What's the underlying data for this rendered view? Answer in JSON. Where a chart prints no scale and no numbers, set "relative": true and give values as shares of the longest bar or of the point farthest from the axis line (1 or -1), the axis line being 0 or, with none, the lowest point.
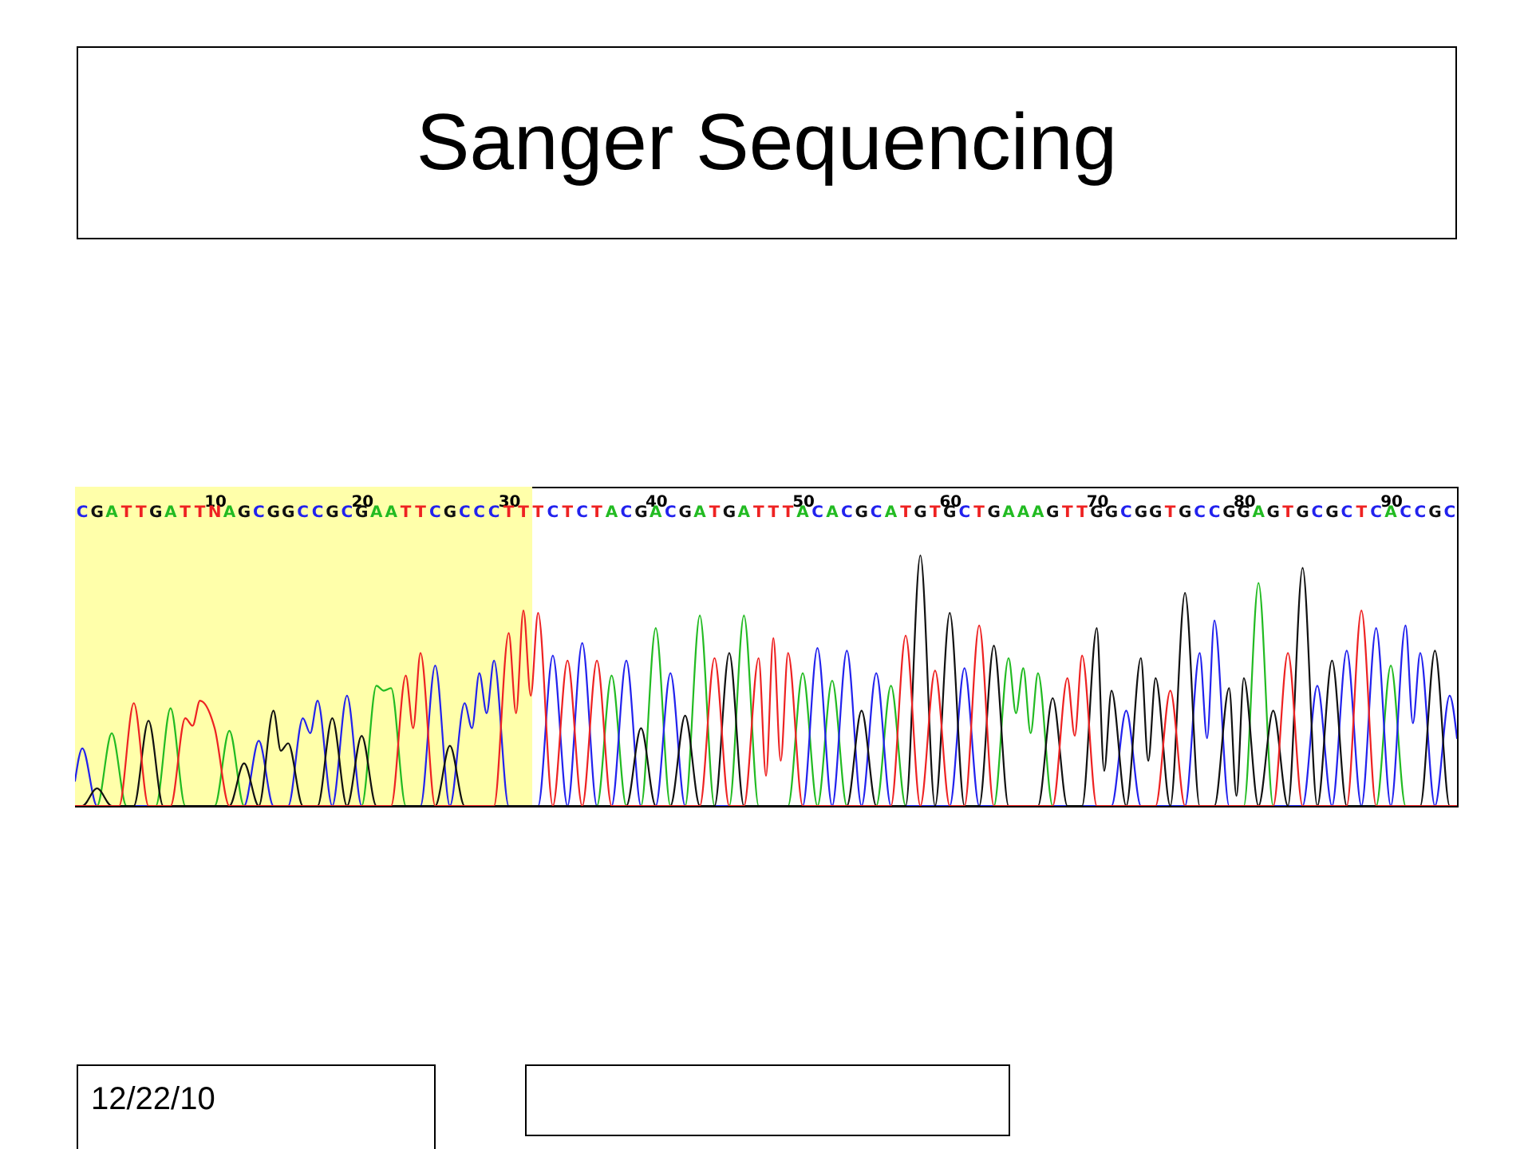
{
  "chart_data": {
    "type": "line",
    "title": "Sanger Sequencing",
    "relative": true,
    "xlim": [
      0.5,
      94.5
    ],
    "xticks": [
      10,
      20,
      30,
      40,
      50,
      60,
      70,
      80,
      90
    ],
    "bands": [
      {
        "axis": "x",
        "from": 0.5,
        "to": 31.6,
        "color": "#ffffaa"
      }
    ],
    "annotations": [
      "CGATTGATTNAGCGGCCGCGAATTCGCCCTTTCTCTACGACGATGATTTACACGCATGTGCTGAAAGTTGGCGGTGCCGGAGTGCGCTCACCGC",
      "12/22/10"
    ],
    "series": [
      {
        "color": "#22bb22",
        "x": [
          0.5,
          2,
          3,
          4,
          6,
          7,
          8,
          10,
          11,
          12,
          20,
          21,
          21.5,
          22,
          23,
          36,
          37,
          38,
          39,
          40,
          41,
          42,
          43,
          44,
          45,
          46,
          47,
          49,
          50,
          51,
          52,
          53,
          55,
          56,
          57,
          63,
          64,
          64.5,
          65,
          65.5,
          66,
          67,
          80,
          81,
          82,
          89,
          90,
          91,
          94.5
        ],
        "values": [
          0,
          0,
          0.29,
          0,
          0,
          0.39,
          0,
          0,
          0.3,
          0,
          0,
          0.48,
          0.46,
          0.47,
          0,
          0,
          0.52,
          0,
          0,
          0.71,
          0,
          0,
          0.76,
          0,
          0,
          0.76,
          0,
          0,
          0.53,
          0,
          0.5,
          0,
          0,
          0.48,
          0,
          0,
          0.59,
          0.37,
          0.55,
          0.29,
          0.53,
          0,
          0,
          0.89,
          0,
          0,
          0.56,
          0,
          0
        ]
      },
      {
        "color": "#2222ee",
        "x": [
          0.5,
          1,
          2,
          12,
          13,
          14,
          15,
          16,
          16.5,
          17,
          18,
          19,
          20,
          24,
          25,
          26,
          27,
          27.5,
          28,
          28.5,
          29,
          30,
          32,
          33,
          34,
          35,
          36,
          37,
          38,
          39,
          40,
          41,
          42,
          50,
          51,
          52,
          53,
          54,
          55,
          56,
          60,
          61,
          62,
          71,
          72,
          73,
          76,
          77,
          77.5,
          78,
          79,
          84,
          85,
          86,
          87,
          88,
          89,
          90,
          91,
          91.5,
          92,
          93,
          94,
          94.5
        ],
        "values": [
          0.1,
          0.23,
          0,
          0,
          0.26,
          0,
          0,
          0.35,
          0.29,
          0.42,
          0,
          0.44,
          0,
          0,
          0.56,
          0,
          0.41,
          0.31,
          0.53,
          0.37,
          0.58,
          0,
          0,
          0.6,
          0,
          0.65,
          0,
          0,
          0.58,
          0,
          0,
          0.53,
          0,
          0,
          0.63,
          0,
          0.62,
          0,
          0.53,
          0,
          0,
          0.55,
          0,
          0,
          0.38,
          0,
          0,
          0.61,
          0.27,
          0.74,
          0,
          0,
          0.48,
          0,
          0.62,
          0,
          0.71,
          0,
          0.72,
          0.33,
          0.61,
          0,
          0.44,
          0.27
        ]
      },
      {
        "color": "#111111",
        "x": [
          0.5,
          1,
          2,
          3,
          4.5,
          5.5,
          6.5,
          11,
          12,
          13,
          14,
          14.5,
          15,
          16,
          17,
          18,
          19,
          20,
          21,
          25,
          26,
          27,
          38,
          39,
          40,
          41,
          42,
          43,
          44,
          45,
          46,
          53,
          54,
          55,
          57,
          58,
          59,
          60,
          61,
          62,
          63,
          64,
          66,
          67,
          68,
          69,
          70,
          70.5,
          71,
          72,
          73,
          73.5,
          74,
          75,
          76,
          77,
          78,
          79,
          79.5,
          80,
          81,
          82,
          83,
          84,
          85,
          86,
          87,
          92,
          93,
          94,
          94.5
        ],
        "values": [
          0,
          0,
          0.07,
          0,
          0,
          0.34,
          0,
          0,
          0.17,
          0,
          0.38,
          0.22,
          0.25,
          0,
          0,
          0.35,
          0,
          0.28,
          0,
          0,
          0.24,
          0,
          0,
          0.31,
          0,
          0,
          0.36,
          0,
          0,
          0.61,
          0,
          0,
          0.38,
          0,
          0,
          1,
          0,
          0.77,
          0,
          0,
          0.64,
          0,
          0,
          0.43,
          0,
          0,
          0.71,
          0.14,
          0.46,
          0,
          0.59,
          0.18,
          0.51,
          0,
          0.85,
          0,
          0,
          0.47,
          0.04,
          0.51,
          0,
          0.38,
          0,
          0.95,
          0,
          0.58,
          0,
          0,
          0.62,
          0,
          0
        ]
      },
      {
        "color": "#ee2222",
        "x": [
          0.5,
          3.5,
          4.5,
          5.5,
          7,
          8,
          8.5,
          9,
          10,
          11,
          22,
          23,
          23.5,
          24,
          25,
          29,
          30,
          30.5,
          31,
          31.5,
          32,
          33,
          34,
          35,
          36,
          37,
          43,
          44,
          45,
          46,
          47,
          47.5,
          48,
          48.5,
          49,
          50,
          56,
          57,
          58,
          59,
          60,
          61,
          62,
          63,
          67,
          68,
          68.5,
          69,
          70,
          74,
          75,
          76,
          82,
          83,
          84,
          87,
          88,
          89,
          94.5
        ],
        "values": [
          0,
          0,
          0.41,
          0,
          0,
          0.35,
          0.32,
          0.42,
          0.31,
          0,
          0,
          0.52,
          0.31,
          0.61,
          0,
          0,
          0.69,
          0.37,
          0.78,
          0.44,
          0.77,
          0,
          0.58,
          0,
          0.58,
          0,
          0,
          0.59,
          0,
          0,
          0.59,
          0.12,
          0.67,
          0.18,
          0.61,
          0,
          0,
          0.68,
          0,
          0.54,
          0,
          0,
          0.72,
          0,
          0,
          0.51,
          0.28,
          0.6,
          0,
          0,
          0.46,
          0,
          0,
          0.61,
          0,
          0,
          0.78,
          0,
          0
        ]
      }
    ]
  }
}
